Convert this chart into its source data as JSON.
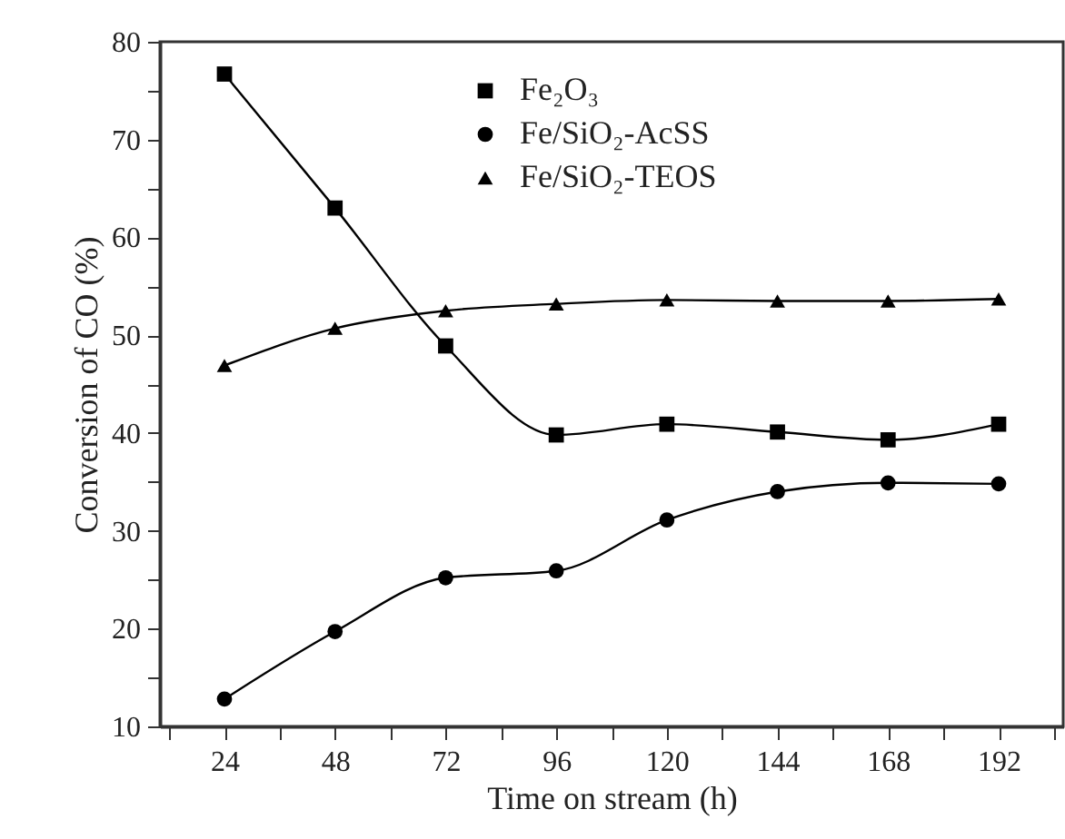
{
  "chart_data": {
    "type": "line",
    "xlabel": "Time on stream (h)",
    "ylabel": "Conversion of CO (%)",
    "x": [
      24,
      48,
      72,
      96,
      120,
      144,
      168,
      192
    ],
    "series": [
      {
        "name": "Fe₂O₃",
        "color": "#000000",
        "marker": "square",
        "values": [
          76.7,
          63.0,
          48.9,
          39.8,
          40.9,
          40.1,
          39.3,
          40.9
        ]
      },
      {
        "name": "Fe/SiO₂-AcSS",
        "color": "#000000",
        "marker": "circle",
        "values": [
          12.8,
          19.7,
          25.2,
          25.9,
          31.1,
          34.0,
          34.9,
          34.8
        ]
      },
      {
        "name": "Fe/SiO₂-TEOS",
        "color": "#000000",
        "marker": "triangle",
        "values": [
          46.9,
          50.7,
          52.5,
          53.2,
          53.6,
          53.5,
          53.5,
          53.7
        ]
      }
    ],
    "xlim": [
      10,
      206
    ],
    "xticks": [
      {
        "value": 12,
        "label": null
      },
      24,
      {
        "value": 36,
        "label": null
      },
      48,
      {
        "value": 60,
        "label": null
      },
      72,
      {
        "value": 84,
        "label": null
      },
      96,
      {
        "value": 108,
        "label": null
      },
      120,
      {
        "value": 132,
        "label": null
      },
      144,
      {
        "value": 156,
        "label": null
      },
      168,
      {
        "value": 180,
        "label": null
      },
      192,
      {
        "value": 204,
        "label": null
      }
    ],
    "ylim": [
      10,
      80
    ],
    "yticks": [
      10,
      {
        "value": 15,
        "label": null
      },
      20,
      {
        "value": 25,
        "label": null
      },
      30,
      {
        "value": 35,
        "label": null
      },
      40,
      {
        "value": 45,
        "label": null
      },
      50,
      {
        "value": 55,
        "label": null
      },
      60,
      {
        "value": 65,
        "label": null
      },
      70,
      {
        "value": 75,
        "label": null
      },
      80
    ],
    "grid": false,
    "legend": "top",
    "line_style": "solid"
  }
}
